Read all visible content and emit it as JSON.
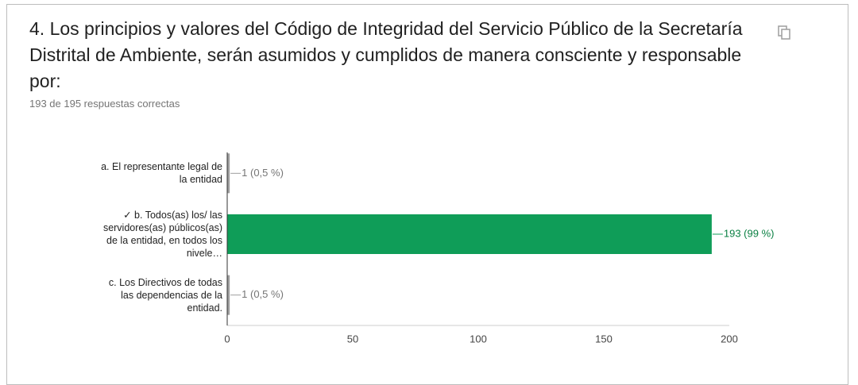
{
  "chart_data": {
    "type": "bar",
    "orientation": "horizontal",
    "title": "4. Los principios y valores del Código de Integridad del Servicio Público de la Secretaría Distrital de Ambiente, serán asumidos y cumplidos de manera consciente y responsable por:",
    "subtitle": "193 de 195 respuestas correctas",
    "categories": [
      "a. El representante legal de la entidad",
      "✓ b. Todos(as) los/ las servidores(as) públicos(as) de la entidad, en todos los nivele…",
      "c. Los Directivos de todas las dependencias de la entidad."
    ],
    "values": [
      1,
      193,
      1
    ],
    "value_labels": [
      "1 (0,5 %)",
      "193 (99 %)",
      "1 (0,5 %)"
    ],
    "colors": [
      "#9e9e9e",
      "#0f9d58",
      "#9e9e9e"
    ],
    "xlim": [
      0,
      200
    ],
    "xticks": [
      0,
      50,
      100,
      150,
      200
    ]
  }
}
